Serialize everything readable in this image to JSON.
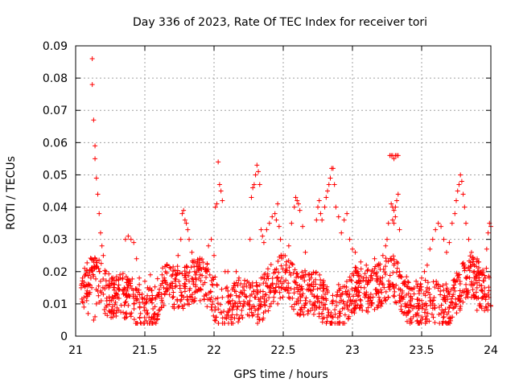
{
  "chart_data": {
    "type": "scatter",
    "title": "Day 336 of 2023, Rate Of TEC Index for receiver tori",
    "xlabel": "GPS time / hours",
    "ylabel": "ROTI / TECUs",
    "xlim": [
      21,
      24
    ],
    "ylim": [
      0,
      0.09
    ],
    "x_ticks": [
      21,
      21.5,
      22,
      22.5,
      23,
      23.5,
      24
    ],
    "x_tick_labels": [
      "21",
      "21.5",
      "22",
      "22.5",
      "23",
      "23.5",
      "24"
    ],
    "y_ticks": [
      0,
      0.01,
      0.02,
      0.03,
      0.04,
      0.05,
      0.06,
      0.07,
      0.08,
      0.09
    ],
    "y_tick_labels": [
      "0",
      "0.01",
      "0.02",
      "0.03",
      "0.04",
      "0.05",
      "0.06",
      "0.07",
      "0.08",
      "0.09"
    ],
    "grid": true,
    "marker": "+",
    "marker_color": "#ff0000",
    "series": [
      {
        "name": "ROTI",
        "points": [
          [
            21.04,
            0.015
          ],
          [
            21.05,
            0.018
          ],
          [
            21.06,
            0.012
          ],
          [
            21.07,
            0.019
          ],
          [
            21.08,
            0.011
          ],
          [
            21.09,
            0.016
          ],
          [
            21.1,
            0.013
          ],
          [
            21.11,
            0.018
          ],
          [
            21.12,
            0.086
          ],
          [
            21.12,
            0.078
          ],
          [
            21.13,
            0.067
          ],
          [
            21.14,
            0.059
          ],
          [
            21.14,
            0.055
          ],
          [
            21.15,
            0.049
          ],
          [
            21.16,
            0.044
          ],
          [
            21.17,
            0.038
          ],
          [
            21.18,
            0.032
          ],
          [
            21.19,
            0.028
          ],
          [
            21.2,
            0.025
          ],
          [
            21.13,
            0.005
          ],
          [
            21.14,
            0.006
          ],
          [
            21.15,
            0.01
          ],
          [
            21.16,
            0.014
          ],
          [
            21.18,
            0.017
          ],
          [
            21.2,
            0.013
          ],
          [
            21.22,
            0.02
          ],
          [
            21.24,
            0.015
          ],
          [
            21.26,
            0.011
          ],
          [
            21.28,
            0.016
          ],
          [
            21.3,
            0.012
          ],
          [
            21.32,
            0.019
          ],
          [
            21.34,
            0.014
          ],
          [
            21.36,
            0.03
          ],
          [
            21.38,
            0.031
          ],
          [
            21.4,
            0.03
          ],
          [
            21.42,
            0.029
          ],
          [
            21.44,
            0.024
          ],
          [
            21.46,
            0.018
          ],
          [
            21.48,
            0.013
          ],
          [
            21.5,
            0.01
          ],
          [
            21.52,
            0.015
          ],
          [
            21.54,
            0.011
          ],
          [
            21.56,
            0.006
          ],
          [
            21.58,
            0.004
          ],
          [
            21.6,
            0.008
          ],
          [
            21.62,
            0.013
          ],
          [
            21.64,
            0.018
          ],
          [
            21.66,
            0.022
          ],
          [
            21.68,
            0.015
          ],
          [
            21.7,
            0.012
          ],
          [
            21.72,
            0.017
          ],
          [
            21.74,
            0.025
          ],
          [
            21.76,
            0.03
          ],
          [
            21.77,
            0.038
          ],
          [
            21.78,
            0.039
          ],
          [
            21.79,
            0.036
          ],
          [
            21.8,
            0.035
          ],
          [
            21.81,
            0.033
          ],
          [
            21.82,
            0.03
          ],
          [
            21.84,
            0.026
          ],
          [
            21.86,
            0.02
          ],
          [
            21.88,
            0.014
          ],
          [
            21.9,
            0.011
          ],
          [
            21.92,
            0.016
          ],
          [
            21.94,
            0.02
          ],
          [
            21.96,
            0.028
          ],
          [
            21.98,
            0.03
          ],
          [
            22.0,
            0.025
          ],
          [
            22.01,
            0.04
          ],
          [
            22.02,
            0.041
          ],
          [
            22.03,
            0.054
          ],
          [
            22.04,
            0.047
          ],
          [
            22.05,
            0.045
          ],
          [
            22.06,
            0.042
          ],
          [
            22.08,
            0.02
          ],
          [
            22.1,
            0.014
          ],
          [
            22.12,
            0.01
          ],
          [
            22.14,
            0.015
          ],
          [
            22.16,
            0.02
          ],
          [
            22.18,
            0.012
          ],
          [
            22.2,
            0.008
          ],
          [
            22.22,
            0.013
          ],
          [
            22.24,
            0.017
          ],
          [
            22.26,
            0.03
          ],
          [
            22.27,
            0.043
          ],
          [
            22.28,
            0.046
          ],
          [
            22.29,
            0.047
          ],
          [
            22.3,
            0.05
          ],
          [
            22.31,
            0.053
          ],
          [
            22.32,
            0.051
          ],
          [
            22.33,
            0.047
          ],
          [
            22.34,
            0.033
          ],
          [
            22.35,
            0.031
          ],
          [
            22.36,
            0.029
          ],
          [
            22.38,
            0.033
          ],
          [
            22.4,
            0.035
          ],
          [
            22.42,
            0.037
          ],
          [
            22.44,
            0.038
          ],
          [
            22.45,
            0.036
          ],
          [
            22.46,
            0.041
          ],
          [
            22.47,
            0.034
          ],
          [
            22.48,
            0.03
          ],
          [
            22.5,
            0.025
          ],
          [
            22.52,
            0.022
          ],
          [
            22.54,
            0.028
          ],
          [
            22.56,
            0.035
          ],
          [
            22.58,
            0.04
          ],
          [
            22.59,
            0.043
          ],
          [
            22.6,
            0.042
          ],
          [
            22.61,
            0.041
          ],
          [
            22.62,
            0.039
          ],
          [
            22.64,
            0.034
          ],
          [
            22.66,
            0.026
          ],
          [
            22.68,
            0.019
          ],
          [
            22.7,
            0.014
          ],
          [
            22.72,
            0.01
          ],
          [
            22.74,
            0.036
          ],
          [
            22.75,
            0.04
          ],
          [
            22.76,
            0.042
          ],
          [
            22.77,
            0.038
          ],
          [
            22.78,
            0.036
          ],
          [
            22.8,
            0.04
          ],
          [
            22.81,
            0.043
          ],
          [
            22.82,
            0.045
          ],
          [
            22.83,
            0.047
          ],
          [
            22.84,
            0.049
          ],
          [
            22.85,
            0.052
          ],
          [
            22.86,
            0.052
          ],
          [
            22.87,
            0.047
          ],
          [
            22.88,
            0.04
          ],
          [
            22.9,
            0.037
          ],
          [
            22.92,
            0.032
          ],
          [
            22.94,
            0.036
          ],
          [
            22.96,
            0.038
          ],
          [
            22.98,
            0.03
          ],
          [
            23.0,
            0.027
          ],
          [
            23.02,
            0.026
          ],
          [
            23.04,
            0.02
          ],
          [
            23.06,
            0.023
          ],
          [
            23.08,
            0.018
          ],
          [
            23.1,
            0.022
          ],
          [
            23.12,
            0.017
          ],
          [
            23.14,
            0.02
          ],
          [
            23.16,
            0.024
          ],
          [
            23.18,
            0.022
          ],
          [
            23.2,
            0.018
          ],
          [
            23.22,
            0.025
          ],
          [
            23.24,
            0.028
          ],
          [
            23.25,
            0.03
          ],
          [
            23.26,
            0.035
          ],
          [
            23.27,
            0.056
          ],
          [
            23.28,
            0.056
          ],
          [
            23.29,
            0.056
          ],
          [
            23.3,
            0.055
          ],
          [
            23.31,
            0.056
          ],
          [
            23.32,
            0.056
          ],
          [
            23.33,
            0.056
          ],
          [
            23.28,
            0.041
          ],
          [
            23.29,
            0.04
          ],
          [
            23.3,
            0.039
          ],
          [
            23.31,
            0.04
          ],
          [
            23.32,
            0.042
          ],
          [
            23.29,
            0.036
          ],
          [
            23.3,
            0.035
          ],
          [
            23.31,
            0.037
          ],
          [
            23.33,
            0.044
          ],
          [
            23.34,
            0.033
          ],
          [
            23.28,
            0.024
          ],
          [
            23.3,
            0.022
          ],
          [
            23.32,
            0.023
          ],
          [
            23.34,
            0.02
          ],
          [
            23.36,
            0.014
          ],
          [
            23.38,
            0.01
          ],
          [
            23.4,
            0.007
          ],
          [
            23.42,
            0.005
          ],
          [
            23.44,
            0.006
          ],
          [
            23.46,
            0.009
          ],
          [
            23.48,
            0.014
          ],
          [
            23.5,
            0.018
          ],
          [
            23.52,
            0.02
          ],
          [
            23.54,
            0.022
          ],
          [
            23.56,
            0.027
          ],
          [
            23.58,
            0.03
          ],
          [
            23.6,
            0.033
          ],
          [
            23.62,
            0.035
          ],
          [
            23.64,
            0.034
          ],
          [
            23.66,
            0.03
          ],
          [
            23.68,
            0.026
          ],
          [
            23.7,
            0.029
          ],
          [
            23.72,
            0.035
          ],
          [
            23.74,
            0.038
          ],
          [
            23.75,
            0.042
          ],
          [
            23.76,
            0.045
          ],
          [
            23.77,
            0.047
          ],
          [
            23.78,
            0.05
          ],
          [
            23.79,
            0.048
          ],
          [
            23.8,
            0.044
          ],
          [
            23.81,
            0.04
          ],
          [
            23.82,
            0.035
          ],
          [
            23.84,
            0.03
          ],
          [
            23.86,
            0.026
          ],
          [
            23.88,
            0.02
          ],
          [
            23.9,
            0.015
          ],
          [
            23.92,
            0.01
          ],
          [
            23.94,
            0.012
          ],
          [
            23.96,
            0.018
          ],
          [
            23.97,
            0.027
          ],
          [
            23.98,
            0.032
          ],
          [
            23.99,
            0.035
          ],
          [
            24.0,
            0.034
          ],
          [
            21.06,
            0.009
          ],
          [
            21.09,
            0.007
          ],
          [
            21.22,
            0.009
          ],
          [
            21.26,
            0.018
          ],
          [
            21.3,
            0.008
          ],
          [
            21.34,
            0.018
          ],
          [
            21.38,
            0.016
          ],
          [
            21.42,
            0.01
          ],
          [
            21.46,
            0.016
          ],
          [
            21.5,
            0.017
          ],
          [
            21.54,
            0.019
          ],
          [
            21.58,
            0.012
          ],
          [
            21.62,
            0.009
          ],
          [
            21.66,
            0.014
          ],
          [
            21.7,
            0.019
          ],
          [
            21.74,
            0.009
          ],
          [
            21.78,
            0.012
          ],
          [
            21.82,
            0.017
          ],
          [
            21.86,
            0.011
          ],
          [
            21.9,
            0.019
          ],
          [
            21.94,
            0.013
          ],
          [
            21.98,
            0.009
          ],
          [
            22.02,
            0.016
          ],
          [
            22.06,
            0.012
          ],
          [
            22.1,
            0.02
          ],
          [
            22.14,
            0.009
          ],
          [
            22.18,
            0.018
          ],
          [
            22.22,
            0.01
          ],
          [
            22.26,
            0.015
          ],
          [
            22.3,
            0.012
          ],
          [
            22.34,
            0.018
          ],
          [
            22.38,
            0.011
          ],
          [
            22.42,
            0.016
          ],
          [
            22.46,
            0.01
          ],
          [
            22.5,
            0.015
          ],
          [
            22.54,
            0.012
          ],
          [
            22.58,
            0.017
          ],
          [
            22.62,
            0.013
          ],
          [
            22.66,
            0.01
          ],
          [
            22.7,
            0.018
          ],
          [
            22.74,
            0.012
          ],
          [
            22.78,
            0.007
          ],
          [
            22.82,
            0.014
          ],
          [
            22.86,
            0.011
          ],
          [
            22.9,
            0.016
          ],
          [
            22.94,
            0.01
          ],
          [
            22.98,
            0.013
          ],
          [
            23.02,
            0.015
          ],
          [
            23.06,
            0.011
          ],
          [
            23.1,
            0.013
          ],
          [
            23.14,
            0.01
          ],
          [
            23.18,
            0.014
          ],
          [
            23.22,
            0.016
          ],
          [
            23.26,
            0.012
          ],
          [
            23.3,
            0.015
          ],
          [
            23.34,
            0.011
          ],
          [
            23.38,
            0.016
          ],
          [
            23.42,
            0.012
          ],
          [
            23.46,
            0.017
          ],
          [
            23.5,
            0.011
          ],
          [
            23.54,
            0.015
          ],
          [
            23.58,
            0.01
          ],
          [
            23.62,
            0.016
          ],
          [
            23.66,
            0.012
          ],
          [
            23.7,
            0.009
          ],
          [
            23.74,
            0.014
          ],
          [
            23.78,
            0.011
          ],
          [
            23.82,
            0.016
          ],
          [
            23.86,
            0.012
          ],
          [
            23.9,
            0.008
          ],
          [
            23.94,
            0.014
          ],
          [
            23.98,
            0.01
          ]
        ]
      }
    ]
  }
}
